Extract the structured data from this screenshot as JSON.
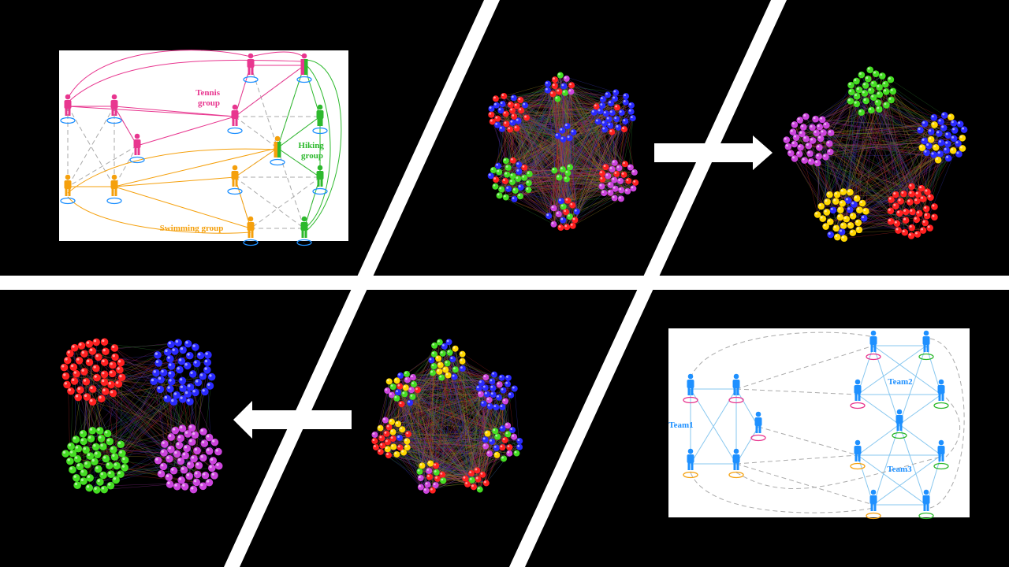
{
  "colors": {
    "background": "#000000",
    "divider": "#ffffff",
    "tennis": "#e8368f",
    "hiking": "#2db92d",
    "swimming": "#f5a00c",
    "ground_ellipse": "#1e90ff",
    "team_person": "#1e90ff",
    "team_edge": "#87c7ef",
    "dashed_edge": "#aaaaaa",
    "red": "#ff2020",
    "green": "#44dd22",
    "blue": "#2a2aff",
    "purple": "#cc44dd",
    "yellow": "#ffd700"
  },
  "social_panel": {
    "groups": [
      {
        "lines": [
          "Tennis",
          "group"
        ],
        "color": "#e8368f"
      },
      {
        "lines": [
          "Hiking",
          "group"
        ],
        "color": "#2db92d"
      },
      {
        "lines": [
          "Swimming group"
        ],
        "color": "#f5a00c"
      }
    ]
  },
  "team_panel": {
    "teams": [
      "Team1",
      "Team2",
      "Team3"
    ]
  },
  "arrows": {
    "top": {
      "direction": "right",
      "icon": "right-arrow-icon"
    },
    "bottom": {
      "direction": "left",
      "icon": "left-arrow-icon"
    }
  },
  "clusters": {
    "top_middle": {
      "groups": 8,
      "colors": [
        "red",
        "green",
        "blue",
        "purple"
      ]
    },
    "top_right": {
      "groups": 5,
      "colors": [
        "green",
        "purple",
        "blue",
        "yellow",
        "red"
      ]
    },
    "bottom_left": {
      "groups": 4,
      "colors": [
        "red",
        "blue",
        "green",
        "purple"
      ]
    },
    "bottom_middle": {
      "groups": 7,
      "colors": [
        "green",
        "purple",
        "blue",
        "red",
        "yellow"
      ]
    }
  }
}
